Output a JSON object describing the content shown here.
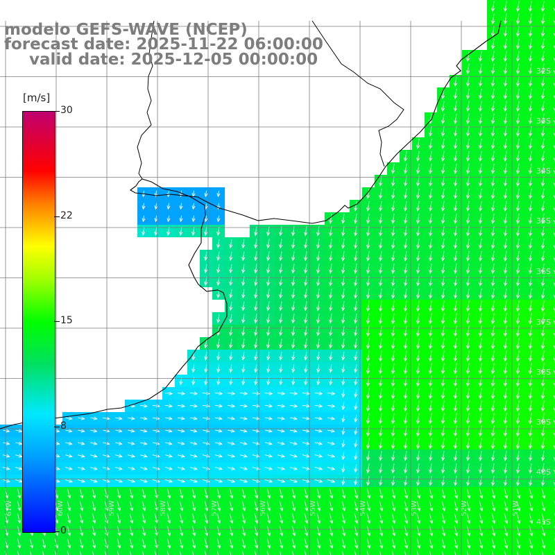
{
  "title": {
    "model": "modelo GEFS-WAVE (NCEP)",
    "forecast": "forecast date: 2025-11-22 06:00:00",
    "valid": "valid date: 2025-12-05 00:00:00"
  },
  "colorbar": {
    "unit": "[m/s]",
    "ticks": [
      "30",
      "22",
      "15",
      "8",
      "0"
    ],
    "tick_values": [
      30,
      22,
      15,
      8,
      0
    ],
    "range": [
      0,
      30
    ],
    "colors": [
      "#0000ff",
      "#00a0ff",
      "#00e8ff",
      "#00e060",
      "#00ff00",
      "#a0ff00",
      "#ffff00",
      "#ff8000",
      "#ff0000",
      "#c00070"
    ]
  },
  "map": {
    "lat_labels": [
      "32S",
      "33S",
      "34S",
      "35S",
      "36S",
      "37S",
      "38S",
      "39S",
      "40S",
      "41S"
    ],
    "lon_labels": [
      "61W",
      "60W",
      "59W",
      "58W",
      "57W",
      "56W",
      "55W",
      "54W",
      "53W",
      "52W",
      "51W"
    ],
    "colors": {
      "land": "#ffffff",
      "grid": "#7a7a7a",
      "coast": "#000000",
      "arrows": "#ffffff",
      "labels": "#d8d8d8"
    }
  }
}
